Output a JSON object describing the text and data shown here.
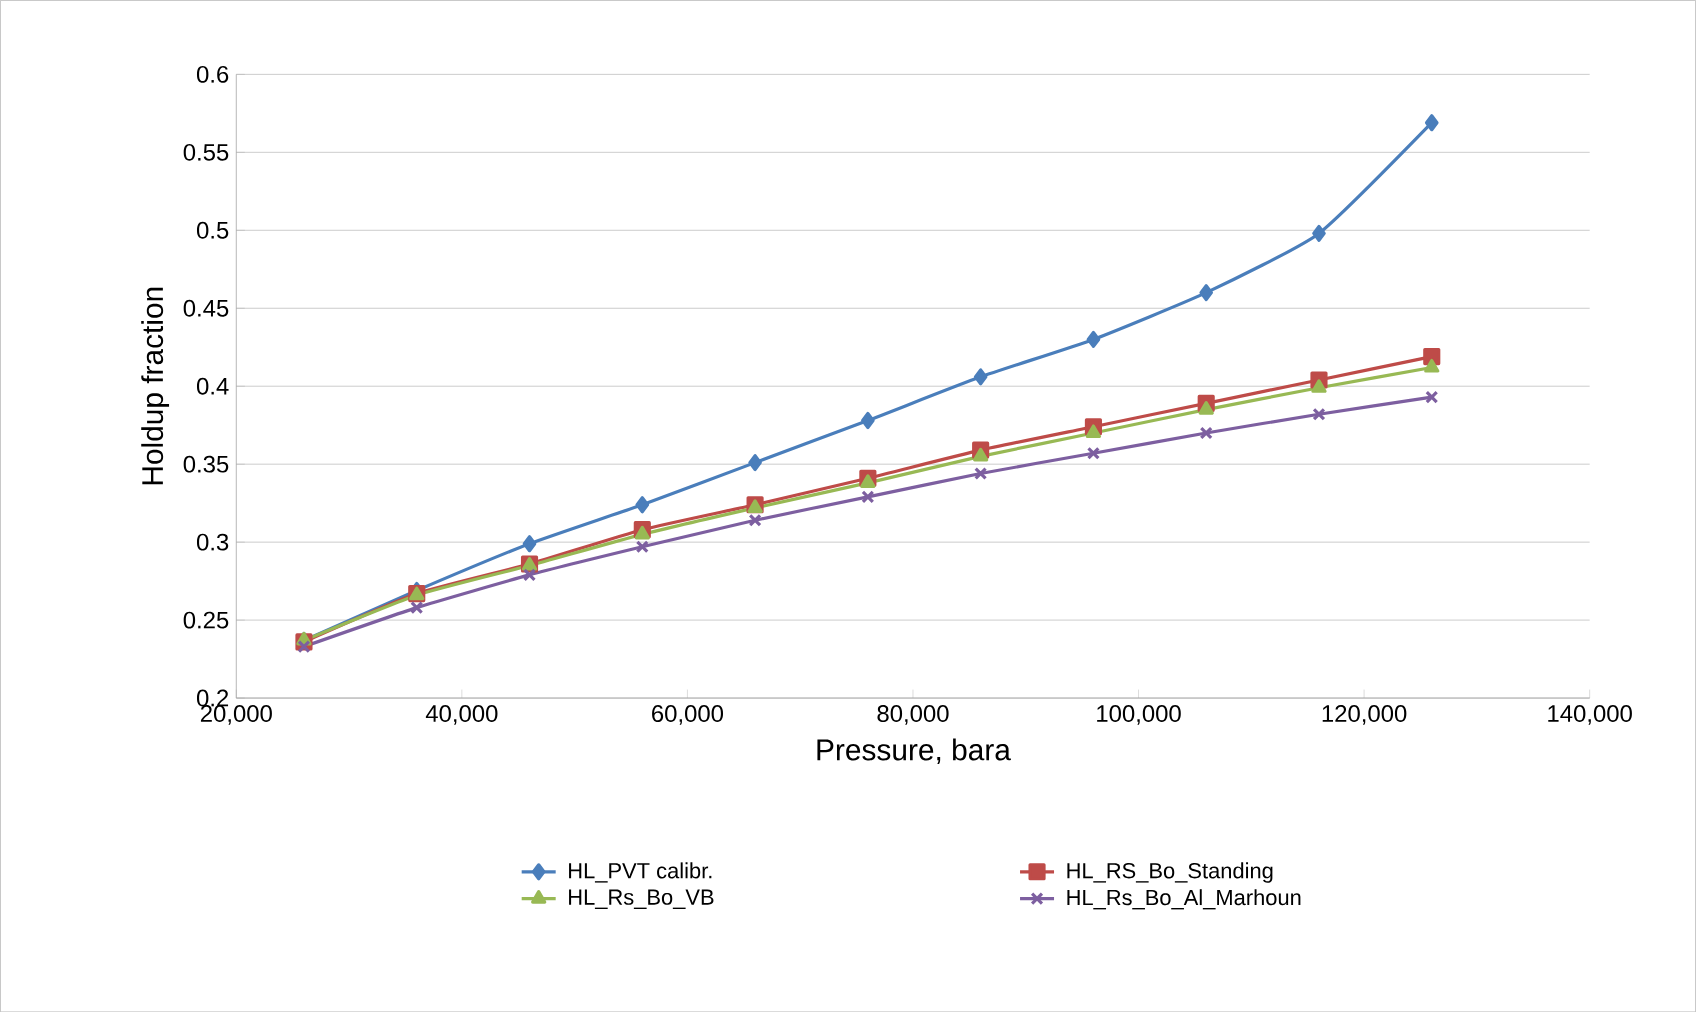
{
  "chart_data": {
    "type": "line",
    "xlabel": "Pressure, bara",
    "ylabel": "Holdup fraction",
    "x": [
      26000,
      36000,
      46000,
      56000,
      66000,
      76000,
      86000,
      96000,
      106000,
      116000,
      126000
    ],
    "series": [
      {
        "name": "HL_PVT calibr.",
        "color": "#4a7ebb",
        "marker": "diamond",
        "values": [
          0.237,
          0.269,
          0.299,
          0.324,
          0.351,
          0.378,
          0.406,
          0.43,
          0.46,
          0.498,
          0.569
        ]
      },
      {
        "name": "HL_RS_Bo_Standing",
        "color": "#be4b48",
        "marker": "square",
        "values": [
          0.236,
          0.267,
          0.286,
          0.308,
          0.324,
          0.341,
          0.359,
          0.374,
          0.389,
          0.404,
          0.419
        ]
      },
      {
        "name": "HL_Rs_Bo_VB",
        "color": "#98b954",
        "marker": "triangle",
        "values": [
          0.237,
          0.266,
          0.285,
          0.305,
          0.322,
          0.338,
          0.355,
          0.37,
          0.385,
          0.399,
          0.412
        ]
      },
      {
        "name": "HL_Rs_Bo_Al_Marhoun",
        "color": "#7d5fa0",
        "marker": "cross",
        "values": [
          0.233,
          0.258,
          0.279,
          0.297,
          0.314,
          0.329,
          0.344,
          0.357,
          0.37,
          0.382,
          0.393
        ]
      }
    ],
    "xlim": [
      20000,
      140000
    ],
    "xticks": [
      {
        "value": 20000,
        "label": "20,000"
      },
      {
        "value": 40000,
        "label": "40,000"
      },
      {
        "value": 60000,
        "label": "60,000"
      },
      {
        "value": 80000,
        "label": "80,000"
      },
      {
        "value": 100000,
        "label": "100,000"
      },
      {
        "value": 120000,
        "label": "120,000"
      },
      {
        "value": 140000,
        "label": "140,000"
      }
    ],
    "ylim": [
      0.2,
      0.6
    ],
    "yticks": [
      0.2,
      0.25,
      0.3,
      0.35,
      0.4,
      0.45,
      0.5,
      0.55,
      0.6
    ],
    "grid": "y",
    "legend": "bottom",
    "line_style": "solid"
  }
}
